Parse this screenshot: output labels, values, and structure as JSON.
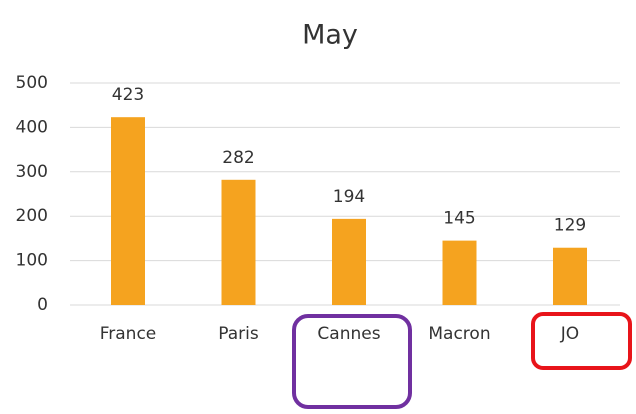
{
  "chart_data": {
    "type": "bar",
    "title": "May",
    "categories": [
      "France",
      "Paris",
      "Cannes",
      "Macron",
      "JO"
    ],
    "values": [
      423,
      282,
      194,
      145,
      129
    ],
    "color": "#f5a31f",
    "ylim": [
      0,
      500
    ],
    "yticks": [
      0,
      100,
      200,
      300,
      400,
      500
    ],
    "grid": true
  }
}
